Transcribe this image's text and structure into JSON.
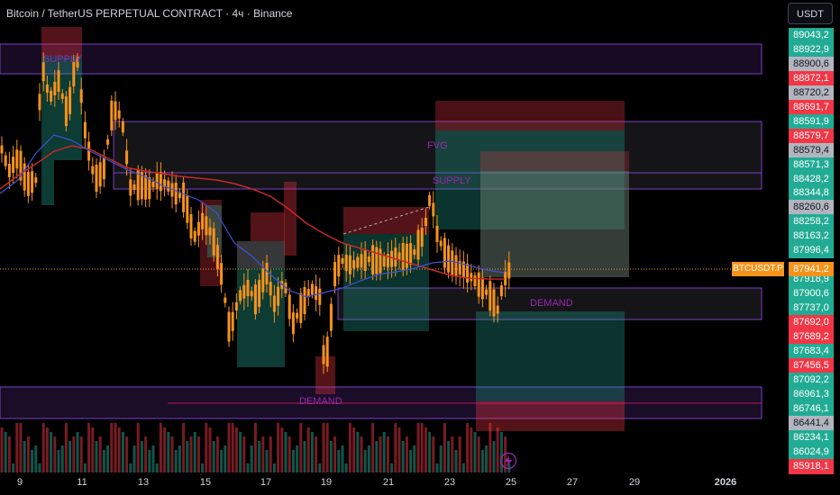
{
  "header": {
    "title": "Bitcoin / TetherUS PERPETUAL CONTRACT · 4ч · Binance",
    "currency_button": "USDT"
  },
  "price_axis": {
    "labels": [
      {
        "text": "89043,2",
        "kind": "up"
      },
      {
        "text": "88922,9",
        "kind": "up"
      },
      {
        "text": "88900,6",
        "kind": "neutral"
      },
      {
        "text": "88872,1",
        "kind": "down"
      },
      {
        "text": "88720,2",
        "kind": "neutral"
      },
      {
        "text": "88691,7",
        "kind": "down"
      },
      {
        "text": "88591,9",
        "kind": "up"
      },
      {
        "text": "88579,7",
        "kind": "down"
      },
      {
        "text": "88579,4",
        "kind": "neutral"
      },
      {
        "text": "88571,3",
        "kind": "up"
      },
      {
        "text": "88428,2",
        "kind": "up"
      },
      {
        "text": "88344,8",
        "kind": "up"
      },
      {
        "text": "88260,6",
        "kind": "neutral"
      },
      {
        "text": "88258,2",
        "kind": "up"
      },
      {
        "text": "88163,2",
        "kind": "up"
      },
      {
        "text": "87996,4",
        "kind": "up"
      },
      {
        "text": "87941,2",
        "kind": "current"
      },
      {
        "text": "87918,9",
        "kind": "up"
      },
      {
        "text": "87900,6",
        "kind": "up"
      },
      {
        "text": "87737,0",
        "kind": "up"
      },
      {
        "text": "87692,0",
        "kind": "down"
      },
      {
        "text": "87689,2",
        "kind": "down"
      },
      {
        "text": "87683,4",
        "kind": "up"
      },
      {
        "text": "87456,5",
        "kind": "down"
      },
      {
        "text": "87092,2",
        "kind": "up"
      },
      {
        "text": "86961,3",
        "kind": "up"
      },
      {
        "text": "86746,1",
        "kind": "up"
      },
      {
        "text": "86441,4",
        "kind": "neutral"
      },
      {
        "text": "86234,1",
        "kind": "up"
      },
      {
        "text": "86024,9",
        "kind": "up"
      },
      {
        "text": "85918,1",
        "kind": "down"
      }
    ],
    "symbol_tag": "BTCUSDT.P",
    "current_price": "87941,2"
  },
  "time_axis": {
    "labels": [
      "9",
      "11",
      "13",
      "15",
      "17",
      "19",
      "21",
      "23",
      "25",
      "27",
      "29",
      "2026"
    ]
  },
  "zones": {
    "supply_top": "SUPPLY",
    "fvg": "FVG",
    "supply_mid": "SUPPLY",
    "demand_right": "DEMAND",
    "demand_bottom": "DEMAND"
  },
  "colors": {
    "up": "#22ab94",
    "down": "#f23645",
    "candle_up": "#f7931a",
    "candle_down": "#f7931a",
    "zone_border": "#7b3fc4",
    "ma_red": "#c62828",
    "ma_blue": "#3f51d9"
  },
  "chart_data": {
    "type": "candlestick",
    "symbol": "BTCUSDT.P",
    "interval": "4ч",
    "exchange": "Binance",
    "last_price": 87941.2,
    "x_ticks": [
      "9",
      "11",
      "13",
      "15",
      "17",
      "19",
      "21",
      "23",
      "25",
      "27",
      "29",
      "2026"
    ]
  }
}
